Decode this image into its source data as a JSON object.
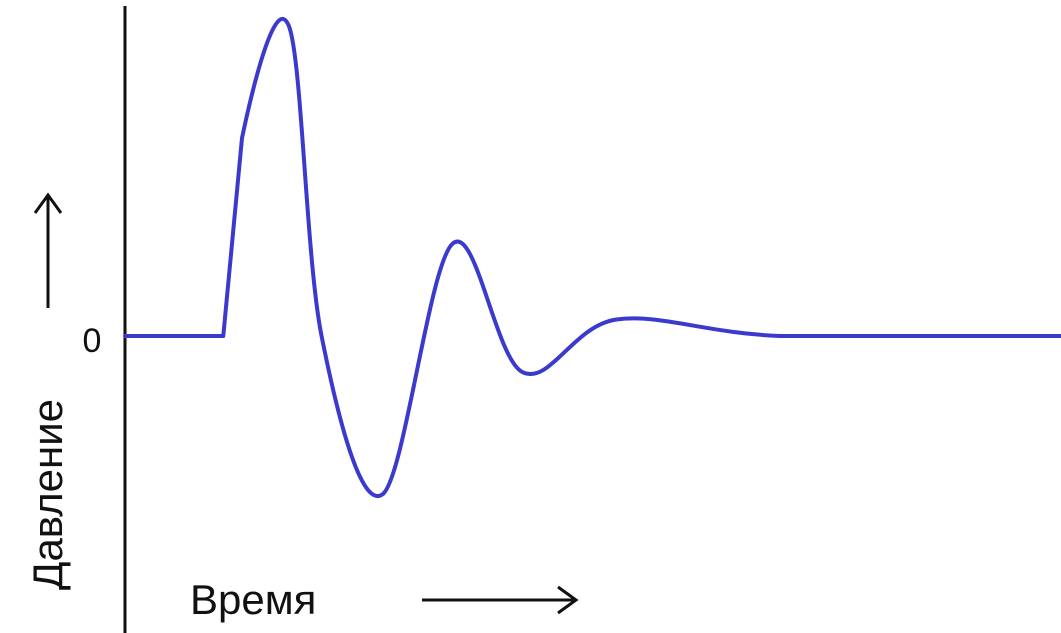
{
  "chart_data": {
    "type": "line",
    "title": "",
    "xlabel": "Время",
    "ylabel": "Давление",
    "y_tick_labels": [
      "0"
    ],
    "y_zero": 0,
    "grid": false,
    "legend": "none",
    "x": [
      0,
      2.1,
      2.5,
      3.5,
      4.2,
      5.5,
      7.0,
      8.5,
      10.5,
      14.0,
      20.0
    ],
    "series": [
      {
        "values": [
          0,
          0,
          3.0,
          4.7,
          0,
          -2.4,
          1.4,
          -0.55,
          0.25,
          0,
          0
        ]
      }
    ],
    "colors": {
      "line": "#3a3acc",
      "axis": "#111111"
    }
  }
}
